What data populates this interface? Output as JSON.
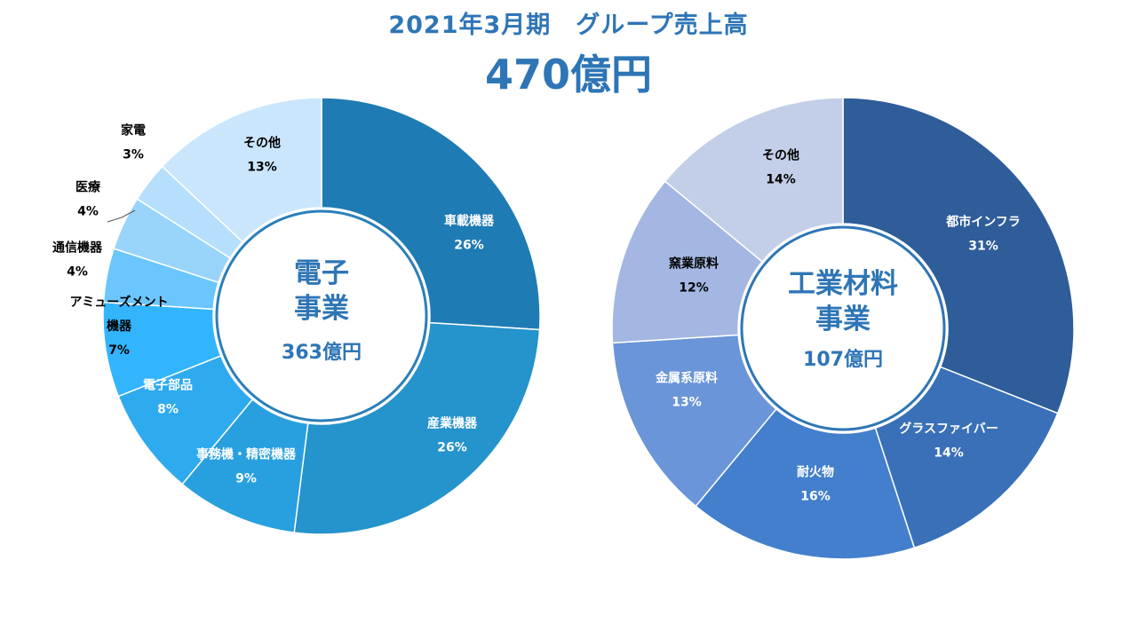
{
  "header": {
    "title": "2021年3月期　グループ売上高",
    "total": "470億円"
  },
  "chart_data": [
    {
      "type": "pie",
      "center_lines": [
        "電子",
        "事業"
      ],
      "center_amount": "363億円",
      "slices": [
        {
          "name": "車載機器",
          "value": 26,
          "label": "26%",
          "color": "#1f7bb3",
          "text_color": "#ffffff"
        },
        {
          "name": "産業機器",
          "value": 26,
          "label": "26%",
          "color": "#2593cc",
          "text_color": "#ffffff"
        },
        {
          "name": "事務機・精密機器",
          "value": 9,
          "label": "9%",
          "color": "#28a0df",
          "text_color": "#ffffff"
        },
        {
          "name": "電子部品",
          "value": 8,
          "label": "8%",
          "color": "#2eaaee",
          "text_color": "#ffffff"
        },
        {
          "name": "アミューズメント機器",
          "label_lines": [
            "アミューズメント",
            "機器"
          ],
          "value": 7,
          "label": "7%",
          "color": "#33b5fd",
          "text_color": "#000000"
        },
        {
          "name": "通信機器",
          "value": 4,
          "label": "4%",
          "color": "#6bc6fd",
          "text_color": "#000000"
        },
        {
          "name": "医療",
          "value": 4,
          "label": "4%",
          "color": "#99d4fb",
          "text_color": "#000000"
        },
        {
          "name": "家電",
          "value": 3,
          "label": "3%",
          "color": "#b5dffc",
          "text_color": "#000000"
        },
        {
          "name": "その他",
          "value": 13,
          "label": "13%",
          "color": "#cae6fd",
          "text_color": "#000000"
        }
      ]
    },
    {
      "type": "pie",
      "center_lines": [
        "工業材料",
        "事業"
      ],
      "center_amount": "107億円",
      "slices": [
        {
          "name": "都市インフラ",
          "value": 31,
          "label": "31%",
          "color": "#2e5d99",
          "text_color": "#ffffff"
        },
        {
          "name": "グラスファイバー",
          "value": 14,
          "label": "14%",
          "color": "#3a70b8",
          "text_color": "#ffffff"
        },
        {
          "name": "耐火物",
          "value": 16,
          "label": "16%",
          "color": "#437fcc",
          "text_color": "#ffffff"
        },
        {
          "name": "金属系原料",
          "value": 13,
          "label": "13%",
          "color": "#6b95d9",
          "text_color": "#ffffff"
        },
        {
          "name": "窯業原料",
          "value": 12,
          "label": "12%",
          "color": "#a3b7e2",
          "text_color": "#000000"
        },
        {
          "name": "その他",
          "value": 14,
          "label": "14%",
          "color": "#c3cfe8",
          "text_color": "#000000"
        }
      ]
    }
  ]
}
